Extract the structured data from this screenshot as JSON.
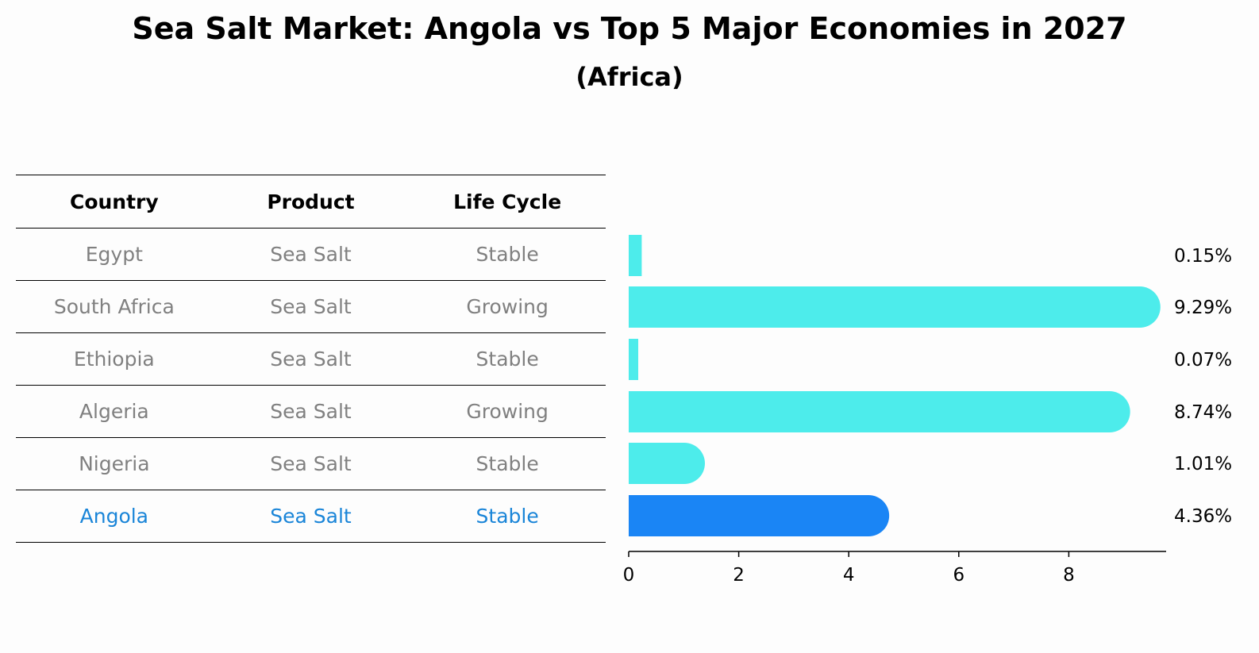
{
  "title": "Sea Salt Market: Angola vs Top 5 Major Economies in 2027",
  "subtitle": "(Africa)",
  "table": {
    "headers": [
      "Country",
      "Product",
      "Life Cycle"
    ],
    "rows": [
      {
        "country": "Egypt",
        "product": "Sea Salt",
        "life_cycle": "Stable"
      },
      {
        "country": "South Africa",
        "product": "Sea Salt",
        "life_cycle": "Growing"
      },
      {
        "country": "Ethiopia",
        "product": "Sea Salt",
        "life_cycle": "Stable"
      },
      {
        "country": "Algeria",
        "product": "Sea Salt",
        "life_cycle": "Growing"
      },
      {
        "country": "Nigeria",
        "product": "Sea Salt",
        "life_cycle": "Stable"
      },
      {
        "country": "Angola",
        "product": "Sea Salt",
        "life_cycle": "Stable"
      }
    ],
    "highlight_color": "#1a85d8",
    "text_color": "#808080"
  },
  "chart_data": {
    "type": "bar",
    "orientation": "horizontal",
    "categories": [
      "Egypt",
      "South Africa",
      "Ethiopia",
      "Algeria",
      "Nigeria",
      "Angola"
    ],
    "values": [
      0.15,
      9.29,
      0.07,
      8.74,
      1.01,
      4.36
    ],
    "value_labels": [
      "0.15%",
      "9.29%",
      "0.07%",
      "8.74%",
      "1.01%",
      "4.36%"
    ],
    "xticks": [
      0,
      2,
      4,
      6,
      8
    ],
    "xlim": [
      0,
      9.75
    ],
    "bar_color": "#4deceb",
    "highlight_color": "#1a85f5",
    "highlight_category": "Angola"
  }
}
